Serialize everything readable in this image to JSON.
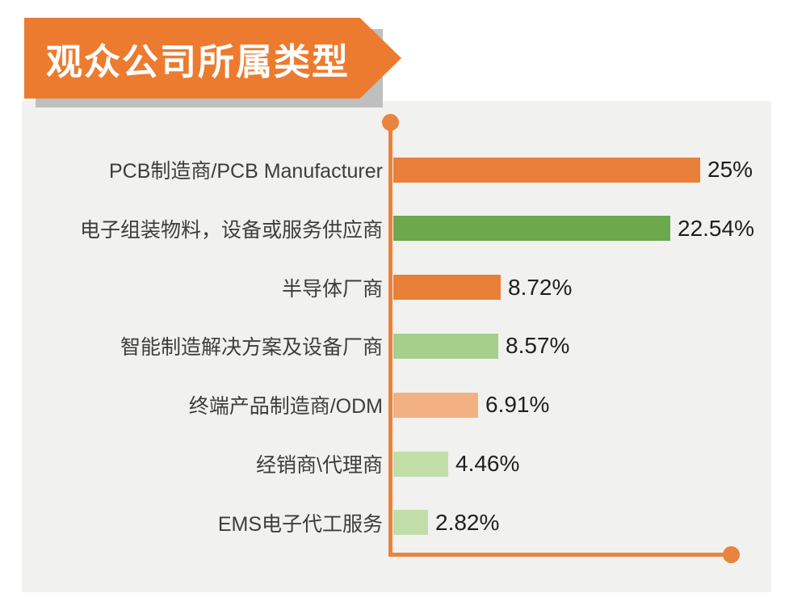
{
  "title": {
    "text": "观众公司所属类型"
  },
  "chart_data": {
    "type": "bar",
    "orientation": "horizontal",
    "title": "观众公司所属类型",
    "xlabel": "",
    "ylabel": "",
    "xlim": [
      0,
      25
    ],
    "grid": false,
    "legend": null,
    "categories": [
      "PCB制造商/PCB Manufacturer",
      "电子组装物料，设备或服务供应商",
      "半导体厂商",
      "智能制造解决方案及设备厂商",
      "终端产品制造商/ODM",
      "经销商\\代理商",
      "EMS电子代工服务"
    ],
    "values": [
      25,
      22.54,
      8.72,
      8.57,
      6.91,
      4.46,
      2.82
    ],
    "value_labels": [
      "25%",
      "22.54%",
      "8.72%",
      "8.57%",
      "6.91%",
      "4.46%",
      "2.82%"
    ],
    "bar_colors": [
      "#E8803A",
      "#6CA84C",
      "#E8803A",
      "#A5CF8B",
      "#F3B083",
      "#C1DEA9",
      "#C1DEA9"
    ]
  },
  "colors": {
    "banner_orange": "#ED7B2F",
    "banner_shadow": "#BFBFBF",
    "panel_bg": "#F1F1EF",
    "axis_orange": "#E8843E",
    "category_text": "#3D3D3D",
    "value_text": "#1F1F1F"
  }
}
